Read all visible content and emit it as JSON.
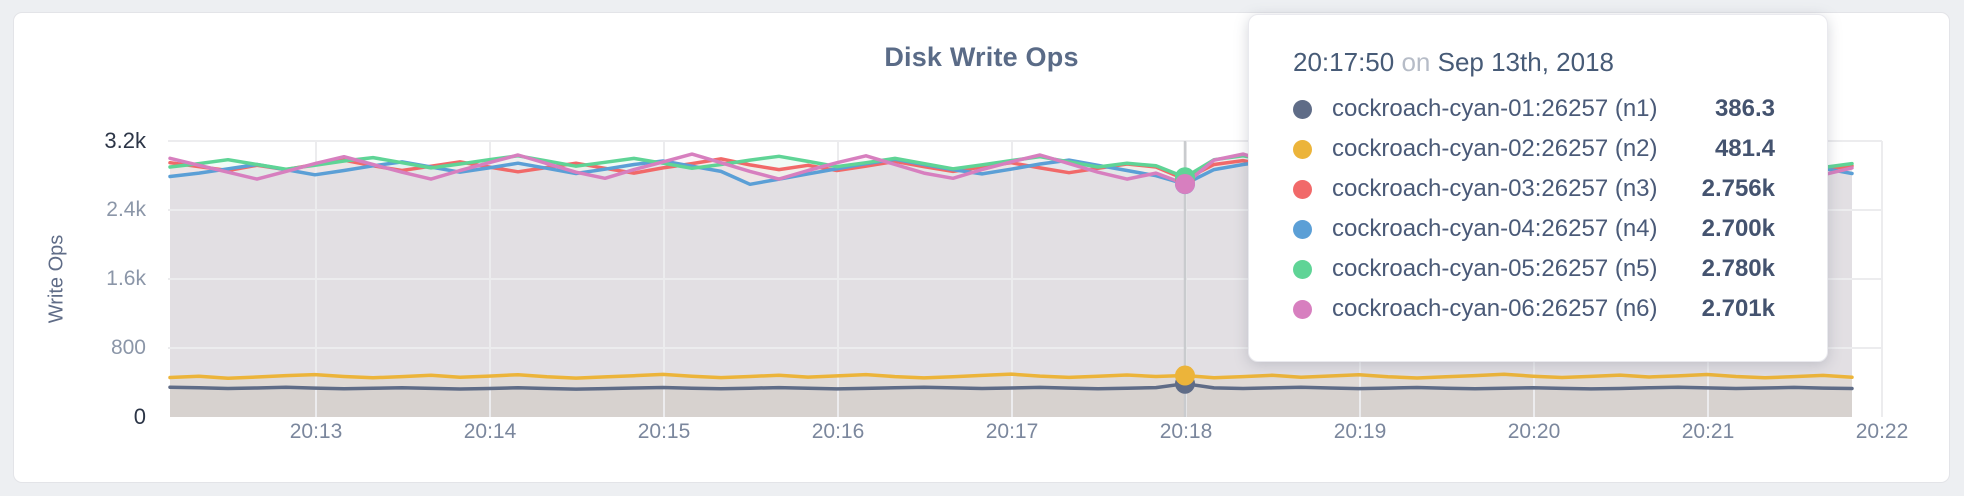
{
  "chart_data": {
    "type": "line",
    "title": "Disk Write Ops",
    "ylabel": "Write Ops",
    "xlabel": "",
    "ylim": [
      0,
      3200
    ],
    "grid": true,
    "x_start": "20:12:10",
    "x_interval_seconds": 10,
    "x_ticks": [
      "20:13",
      "20:14",
      "20:15",
      "20:16",
      "20:17",
      "20:18",
      "20:19",
      "20:20",
      "20:21",
      "20:22"
    ],
    "y_ticks": [
      {
        "value": 0,
        "label": "0"
      },
      {
        "value": 800,
        "label": "800"
      },
      {
        "value": 1600,
        "label": "1.6k"
      },
      {
        "value": 2400,
        "label": "2.4k"
      },
      {
        "value": 3200,
        "label": "3.2k"
      }
    ],
    "hover_index": 35,
    "series": [
      {
        "name": "cockroach-cyan-01:26257 (n1)",
        "color": "#5F6C87",
        "values": [
          345,
          338,
          330,
          336,
          344,
          335,
          328,
          333,
          340,
          332,
          325,
          331,
          338,
          330,
          323,
          329,
          336,
          342,
          334,
          327,
          334,
          341,
          333,
          326,
          332,
          339,
          346,
          337,
          330,
          336,
          343,
          335,
          328,
          334,
          341,
          386,
          337,
          331,
          337,
          344,
          336,
          329,
          335,
          342,
          334,
          327,
          333,
          340,
          332,
          326,
          331,
          338,
          345,
          337,
          331,
          336,
          343,
          335,
          330
        ]
      },
      {
        "name": "cockroach-cyan-02:26257 (n2)",
        "color": "#ECB43A",
        "values": [
          458,
          472,
          450,
          464,
          480,
          492,
          470,
          454,
          468,
          483,
          461,
          474,
          490,
          466,
          451,
          465,
          479,
          494,
          472,
          457,
          470,
          485,
          463,
          476,
          492,
          468,
          453,
          467,
          482,
          497,
          474,
          459,
          472,
          487,
          470,
          481,
          455,
          468,
          483,
          461,
          475,
          491,
          467,
          452,
          466,
          480,
          495,
          473,
          458,
          471,
          486,
          464,
          477,
          493,
          469,
          454,
          468,
          482,
          460
        ]
      },
      {
        "name": "cockroach-cyan-03:26257 (n3)",
        "color": "#F16969",
        "values": [
          2948,
          2903,
          2858,
          2918,
          2868,
          2928,
          2978,
          2913,
          2858,
          2908,
          2958,
          2898,
          2843,
          2893,
          2943,
          2883,
          2828,
          2888,
          2938,
          2993,
          2923,
          2868,
          2918,
          2858,
          2908,
          2963,
          2903,
          2848,
          2898,
          2948,
          2888,
          2833,
          2883,
          2933,
          2898,
          2756,
          2928,
          2973,
          2913,
          2858,
          2903,
          2953,
          2893,
          2838,
          2888,
          2938,
          2983,
          2918,
          2863,
          2908,
          2958,
          2898,
          2843,
          2893,
          2943,
          2888,
          2928,
          2868,
          2913
        ]
      },
      {
        "name": "cockroach-cyan-04:26257 (n4)",
        "color": "#5B9FD6",
        "values": [
          2788,
          2828,
          2878,
          2928,
          2868,
          2808,
          2858,
          2913,
          2958,
          2898,
          2838,
          2888,
          2943,
          2883,
          2823,
          2873,
          2928,
          2968,
          2908,
          2848,
          2698,
          2758,
          2818,
          2878,
          2938,
          2988,
          2928,
          2868,
          2818,
          2873,
          2933,
          2978,
          2918,
          2858,
          2798,
          2700,
          2868,
          2928,
          2973,
          2913,
          2853,
          2808,
          2863,
          2923,
          2963,
          2903,
          2843,
          2798,
          2853,
          2913,
          2953,
          2893,
          2833,
          2788,
          2843,
          2903,
          2943,
          2883,
          2823
        ]
      },
      {
        "name": "cockroach-cyan-05:26257 (n5)",
        "color": "#5FD496",
        "values": [
          2898,
          2938,
          2983,
          2928,
          2873,
          2918,
          2968,
          3008,
          2948,
          2888,
          2933,
          2983,
          3028,
          2968,
          2908,
          2953,
          2998,
          2943,
          2883,
          2928,
          2978,
          3023,
          2963,
          2903,
          2948,
          2998,
          2938,
          2878,
          2923,
          2973,
          3018,
          2958,
          2898,
          2943,
          2913,
          2780,
          2983,
          3028,
          2968,
          2908,
          2953,
          3003,
          2943,
          2883,
          2928,
          2978,
          3023,
          2963,
          2903,
          2948,
          2993,
          2933,
          2873,
          2918,
          2968,
          3013,
          2953,
          2893,
          2938
        ]
      },
      {
        "name": "cockroach-cyan-06:26257 (n6)",
        "color": "#D77FBF",
        "values": [
          3000,
          2918,
          2838,
          2758,
          2848,
          2938,
          3018,
          2928,
          2838,
          2758,
          2858,
          2948,
          3038,
          2938,
          2838,
          2768,
          2868,
          2958,
          3048,
          2948,
          2848,
          2758,
          2858,
          2948,
          3028,
          2928,
          2828,
          2768,
          2868,
          2958,
          3038,
          2938,
          2838,
          2758,
          2828,
          2701,
          2978,
          3048,
          2948,
          2848,
          2768,
          2868,
          2958,
          3028,
          2928,
          2828,
          2748,
          2848,
          2938,
          3018,
          2918,
          2818,
          2738,
          2838,
          2928,
          3008,
          2908,
          2808,
          2888
        ]
      }
    ]
  },
  "tooltip": {
    "time": "20:17:50",
    "conjunction": "on",
    "date": "Sep 13th, 2018",
    "rows": [
      {
        "label": "cockroach-cyan-01:26257 (n1)",
        "value": "386.3"
      },
      {
        "label": "cockroach-cyan-02:26257 (n2)",
        "value": "481.4"
      },
      {
        "label": "cockroach-cyan-03:26257 (n3)",
        "value": "2.756k"
      },
      {
        "label": "cockroach-cyan-04:26257 (n4)",
        "value": "2.700k"
      },
      {
        "label": "cockroach-cyan-05:26257 (n5)",
        "value": "2.780k"
      },
      {
        "label": "cockroach-cyan-06:26257 (n6)",
        "value": "2.701k"
      }
    ]
  },
  "colors": {
    "page_background": "#edeff2",
    "card_background": "#ffffff",
    "grid_line": "#ececee",
    "hover_line": "#c9cbce",
    "title_text": "#5a6b87",
    "axis_text_muted": "#8b96a8",
    "axis_text_dark": "#2c3547"
  }
}
